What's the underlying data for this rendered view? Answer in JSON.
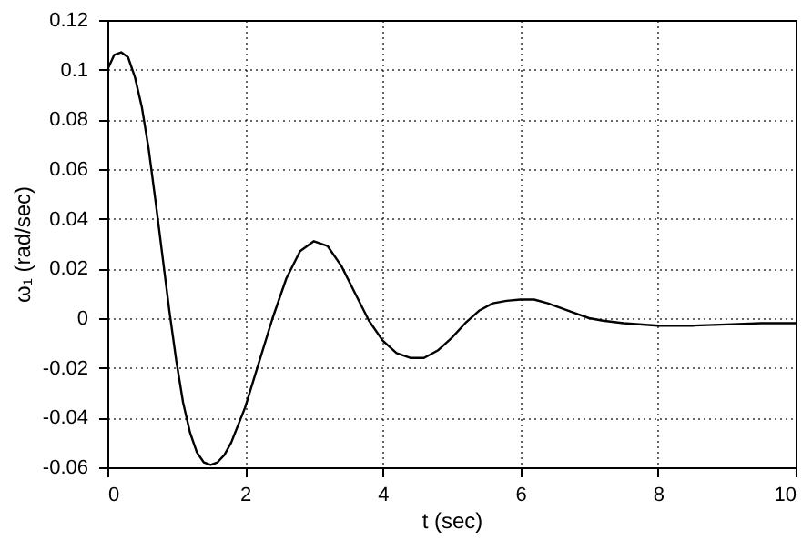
{
  "chart_data": {
    "type": "line",
    "xlabel": "t (sec)",
    "ylabel": "ω₁ (rad/sec)",
    "x": [
      0,
      0.1,
      0.2,
      0.3,
      0.4,
      0.5,
      0.6,
      0.7,
      0.8,
      0.9,
      1.0,
      1.1,
      1.2,
      1.3,
      1.4,
      1.5,
      1.6,
      1.7,
      1.8,
      2.0,
      2.2,
      2.4,
      2.6,
      2.8,
      3.0,
      3.2,
      3.4,
      3.6,
      3.8,
      4.0,
      4.2,
      4.4,
      4.6,
      4.8,
      5.0,
      5.2,
      5.4,
      5.6,
      5.8,
      6.0,
      6.2,
      6.4,
      6.6,
      6.8,
      7.0,
      7.2,
      7.5,
      8.0,
      8.5,
      9.0,
      9.5,
      10
    ],
    "series": [
      {
        "color": "#000000",
        "values": [
          0.1,
          0.106,
          0.107,
          0.105,
          0.097,
          0.085,
          0.068,
          0.047,
          0.025,
          0.003,
          -0.017,
          -0.034,
          -0.046,
          -0.054,
          -0.058,
          -0.059,
          -0.058,
          -0.055,
          -0.05,
          -0.036,
          -0.018,
          0.0,
          0.016,
          0.027,
          0.031,
          0.029,
          0.021,
          0.01,
          -0.001,
          -0.009,
          -0.014,
          -0.016,
          -0.016,
          -0.013,
          -0.008,
          -0.002,
          0.003,
          0.006,
          0.007,
          0.0075,
          0.0075,
          0.006,
          0.004,
          0.002,
          0.0,
          -0.001,
          -0.002,
          -0.003,
          -0.003,
          -0.0025,
          -0.002,
          -0.002
        ]
      }
    ],
    "xlim": [
      0,
      10
    ],
    "xticks": [
      0,
      2,
      4,
      6,
      8,
      10
    ],
    "ylim": [
      -0.06,
      0.12
    ],
    "yticks": [
      -0.06,
      -0.04,
      -0.02,
      0,
      0.02,
      0.04,
      0.06,
      0.08,
      0.1,
      0.12
    ],
    "grid": true,
    "line_style": "solid",
    "marker": "none"
  }
}
